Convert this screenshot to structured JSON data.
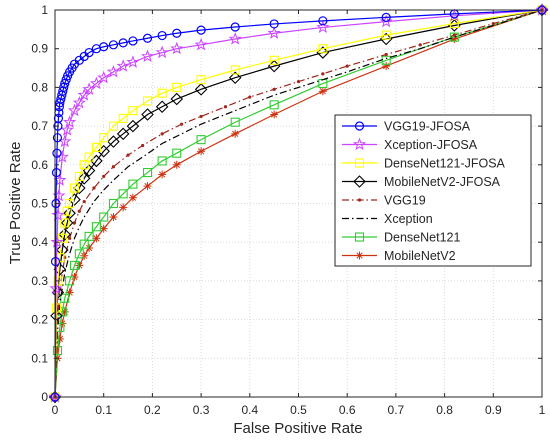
{
  "chart_data": {
    "type": "line",
    "title": "",
    "xlabel": "False Positive Rate",
    "ylabel": "True Positive Rate",
    "xlim": [
      0,
      1
    ],
    "ylim": [
      0,
      1
    ],
    "xticks": [
      "0",
      "0.1",
      "0.2",
      "0.3",
      "0.4",
      "0.5",
      "0.6",
      "0.7",
      "0.8",
      "0.9",
      "1"
    ],
    "yticks": [
      "0",
      "0.1",
      "0.2",
      "0.3",
      "0.4",
      "0.5",
      "0.6",
      "0.7",
      "0.8",
      "0.9",
      "1"
    ],
    "grid": true,
    "legend_position": "center-right",
    "series": [
      {
        "name": "VGG19-JFOSA",
        "color": "#0000ff",
        "marker": "circle",
        "line": "solid",
        "x": [
          0,
          0.001,
          0.002,
          0.003,
          0.004,
          0.005,
          0.006,
          0.007,
          0.008,
          0.009,
          0.01,
          0.012,
          0.014,
          0.016,
          0.018,
          0.02,
          0.023,
          0.026,
          0.03,
          0.035,
          0.04,
          0.05,
          0.06,
          0.07,
          0.085,
          0.1,
          0.12,
          0.14,
          0.16,
          0.19,
          0.22,
          0.25,
          0.3,
          0.37,
          0.45,
          0.55,
          0.68,
          0.82,
          1
        ],
        "y": [
          0,
          0.35,
          0.5,
          0.58,
          0.63,
          0.67,
          0.7,
          0.72,
          0.735,
          0.75,
          0.76,
          0.77,
          0.78,
          0.79,
          0.8,
          0.81,
          0.82,
          0.83,
          0.84,
          0.85,
          0.86,
          0.87,
          0.88,
          0.89,
          0.9,
          0.905,
          0.91,
          0.915,
          0.92,
          0.927,
          0.934,
          0.94,
          0.948,
          0.956,
          0.964,
          0.972,
          0.981,
          0.99,
          1
        ]
      },
      {
        "name": "Xception-JFOSA",
        "color": "#cc44ff",
        "marker": "pentagram",
        "line": "solid",
        "x": [
          0,
          0.002,
          0.004,
          0.006,
          0.008,
          0.01,
          0.015,
          0.02,
          0.025,
          0.03,
          0.04,
          0.05,
          0.06,
          0.07,
          0.085,
          0.1,
          0.12,
          0.14,
          0.16,
          0.19,
          0.22,
          0.25,
          0.3,
          0.37,
          0.45,
          0.55,
          0.68,
          0.82,
          1
        ],
        "y": [
          0,
          0.28,
          0.4,
          0.47,
          0.52,
          0.56,
          0.62,
          0.66,
          0.69,
          0.71,
          0.74,
          0.76,
          0.78,
          0.795,
          0.81,
          0.825,
          0.84,
          0.855,
          0.865,
          0.88,
          0.89,
          0.9,
          0.91,
          0.925,
          0.94,
          0.955,
          0.97,
          0.985,
          1
        ]
      },
      {
        "name": "DenseNet121-JFOSA",
        "color": "#ffff00",
        "marker": "square",
        "line": "solid",
        "x": [
          0,
          0.003,
          0.006,
          0.01,
          0.015,
          0.02,
          0.025,
          0.03,
          0.04,
          0.05,
          0.06,
          0.07,
          0.085,
          0.1,
          0.12,
          0.14,
          0.16,
          0.19,
          0.22,
          0.25,
          0.3,
          0.37,
          0.45,
          0.55,
          0.68,
          0.82,
          1
        ],
        "y": [
          0,
          0.23,
          0.3,
          0.36,
          0.41,
          0.45,
          0.48,
          0.5,
          0.54,
          0.57,
          0.6,
          0.62,
          0.645,
          0.67,
          0.7,
          0.72,
          0.74,
          0.765,
          0.785,
          0.8,
          0.82,
          0.845,
          0.87,
          0.9,
          0.935,
          0.965,
          1
        ]
      },
      {
        "name": "MobileNetV2-JFOSA",
        "color": "#000000",
        "marker": "diamond",
        "line": "solid",
        "x": [
          0,
          0.003,
          0.006,
          0.01,
          0.015,
          0.02,
          0.025,
          0.03,
          0.04,
          0.05,
          0.06,
          0.07,
          0.085,
          0.1,
          0.12,
          0.14,
          0.16,
          0.19,
          0.22,
          0.25,
          0.3,
          0.37,
          0.45,
          0.55,
          0.68,
          0.82,
          1
        ],
        "y": [
          0,
          0.21,
          0.27,
          0.33,
          0.38,
          0.42,
          0.45,
          0.475,
          0.51,
          0.54,
          0.565,
          0.585,
          0.61,
          0.635,
          0.66,
          0.68,
          0.7,
          0.73,
          0.75,
          0.77,
          0.795,
          0.825,
          0.855,
          0.89,
          0.925,
          0.96,
          1
        ]
      },
      {
        "name": "VGG19",
        "color": "#a0261b",
        "marker": "dot",
        "line": "dashdot",
        "x": [
          0,
          0.005,
          0.01,
          0.02,
          0.03,
          0.04,
          0.05,
          0.06,
          0.08,
          0.1,
          0.12,
          0.15,
          0.18,
          0.22,
          0.26,
          0.3,
          0.35,
          0.4,
          0.45,
          0.5,
          0.55,
          0.6,
          0.68,
          0.75,
          0.82,
          0.9,
          1
        ],
        "y": [
          0,
          0.2,
          0.28,
          0.36,
          0.41,
          0.45,
          0.48,
          0.505,
          0.54,
          0.57,
          0.595,
          0.625,
          0.65,
          0.68,
          0.705,
          0.725,
          0.75,
          0.775,
          0.795,
          0.815,
          0.835,
          0.855,
          0.885,
          0.91,
          0.935,
          0.965,
          1
        ]
      },
      {
        "name": "Xception",
        "color": "#000000",
        "marker": "none",
        "line": "dashdot",
        "x": [
          0,
          0.005,
          0.01,
          0.02,
          0.03,
          0.04,
          0.05,
          0.06,
          0.08,
          0.1,
          0.12,
          0.15,
          0.18,
          0.22,
          0.26,
          0.3,
          0.35,
          0.4,
          0.45,
          0.5,
          0.55,
          0.6,
          0.68,
          0.75,
          0.82,
          0.9,
          1
        ],
        "y": [
          0,
          0.17,
          0.24,
          0.32,
          0.37,
          0.41,
          0.44,
          0.465,
          0.505,
          0.535,
          0.56,
          0.595,
          0.62,
          0.655,
          0.68,
          0.705,
          0.73,
          0.755,
          0.78,
          0.8,
          0.82,
          0.84,
          0.875,
          0.9,
          0.93,
          0.96,
          1
        ]
      },
      {
        "name": "DenseNet121",
        "color": "#33cc33",
        "marker": "square",
        "line": "solid",
        "x": [
          0,
          0.005,
          0.01,
          0.015,
          0.02,
          0.03,
          0.04,
          0.05,
          0.06,
          0.07,
          0.085,
          0.1,
          0.12,
          0.14,
          0.16,
          0.19,
          0.22,
          0.25,
          0.3,
          0.37,
          0.45,
          0.55,
          0.68,
          0.82,
          1
        ],
        "y": [
          0,
          0.12,
          0.18,
          0.22,
          0.255,
          0.3,
          0.34,
          0.37,
          0.395,
          0.415,
          0.44,
          0.465,
          0.5,
          0.525,
          0.55,
          0.58,
          0.61,
          0.63,
          0.665,
          0.71,
          0.755,
          0.81,
          0.87,
          0.93,
          1
        ]
      },
      {
        "name": "MobileNetV2",
        "color": "#cc3311",
        "marker": "asterisk",
        "line": "solid",
        "x": [
          0,
          0.005,
          0.01,
          0.015,
          0.02,
          0.03,
          0.04,
          0.05,
          0.06,
          0.07,
          0.085,
          0.1,
          0.12,
          0.14,
          0.16,
          0.19,
          0.22,
          0.25,
          0.3,
          0.37,
          0.45,
          0.55,
          0.68,
          0.82,
          1
        ],
        "y": [
          0,
          0.1,
          0.15,
          0.19,
          0.22,
          0.27,
          0.31,
          0.34,
          0.365,
          0.385,
          0.41,
          0.435,
          0.465,
          0.49,
          0.515,
          0.545,
          0.575,
          0.6,
          0.635,
          0.68,
          0.73,
          0.79,
          0.855,
          0.925,
          1
        ]
      }
    ]
  }
}
